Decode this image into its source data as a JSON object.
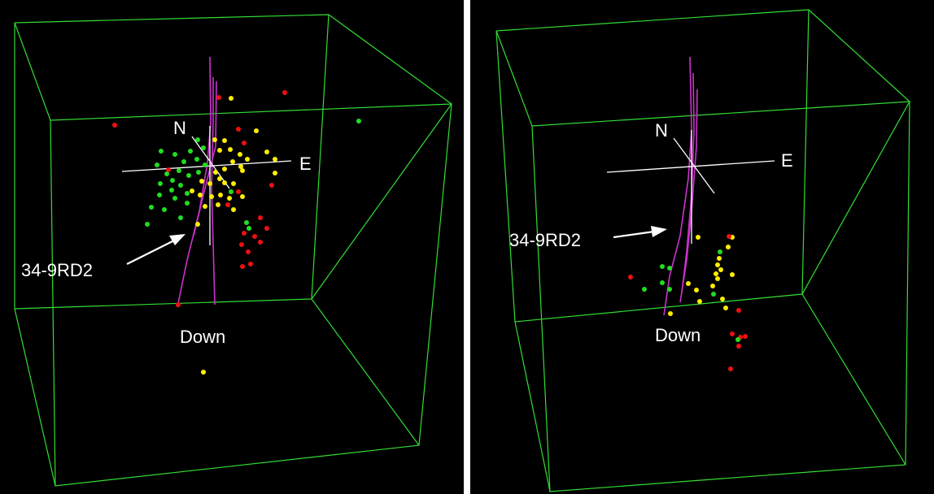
{
  "panels": [
    {
      "id": "left",
      "labels": {
        "north": "N",
        "east": "E",
        "down": "Down",
        "well": "34-9RD2"
      }
    },
    {
      "id": "right",
      "labels": {
        "north": "N",
        "east": "E",
        "down": "Down",
        "well": "34-9RD2"
      }
    }
  ],
  "colors": {
    "background": "#000000",
    "bounding_box": "#33dd33",
    "well_trace": "#cc33cc",
    "axes": "#ffffff",
    "event_green": "#22dd22",
    "event_yellow": "#ffee00",
    "event_red": "#ee1111"
  }
}
